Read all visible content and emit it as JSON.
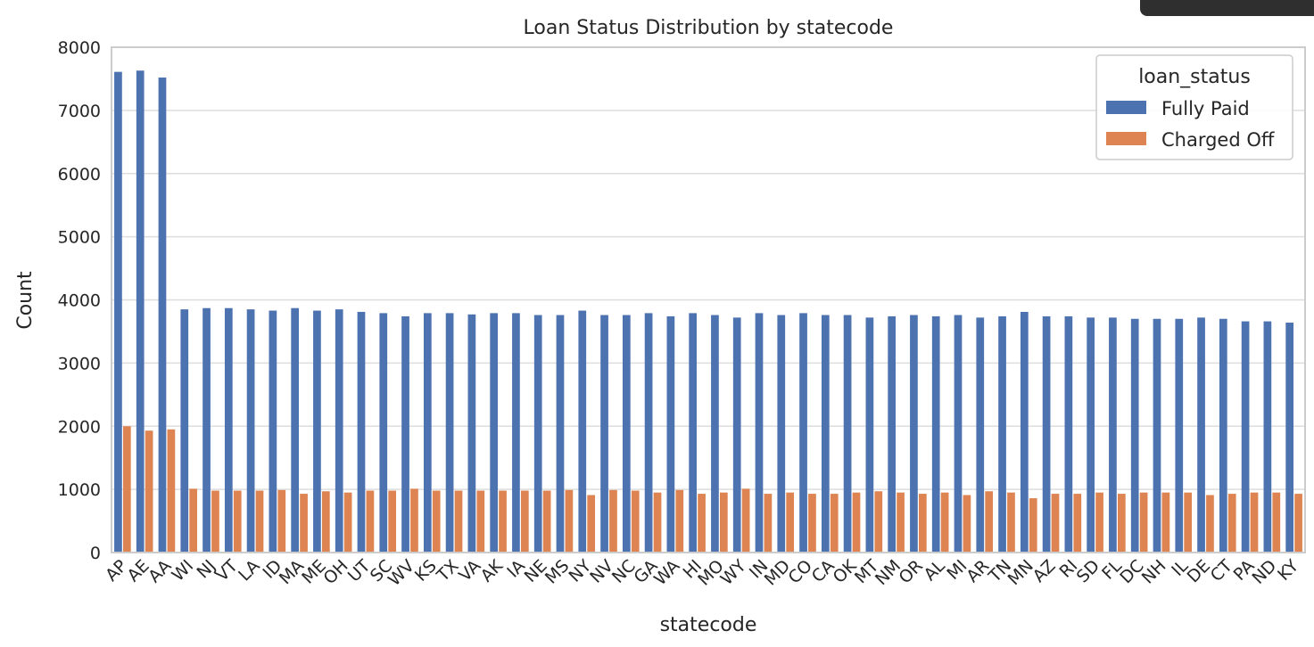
{
  "chart_data": {
    "type": "bar",
    "title": "Loan Status Distribution by statecode",
    "xlabel": "statecode",
    "ylabel": "Count",
    "ylim": [
      0,
      8000
    ],
    "yticks": [
      0,
      1000,
      2000,
      3000,
      4000,
      5000,
      6000,
      7000,
      8000
    ],
    "grid": true,
    "legend": {
      "title": "loan_status",
      "placement": "top-right"
    },
    "categories": [
      "AP",
      "AE",
      "AA",
      "WI",
      "NJ",
      "VT",
      "LA",
      "ID",
      "MA",
      "ME",
      "OH",
      "UT",
      "SC",
      "WV",
      "KS",
      "TX",
      "VA",
      "AK",
      "IA",
      "NE",
      "MS",
      "NY",
      "NV",
      "NC",
      "GA",
      "WA",
      "HI",
      "MO",
      "WY",
      "IN",
      "MD",
      "CO",
      "CA",
      "OK",
      "MT",
      "NM",
      "OR",
      "AL",
      "MI",
      "AR",
      "TN",
      "MN",
      "AZ",
      "RI",
      "SD",
      "FL",
      "DC",
      "NH",
      "IL",
      "DE",
      "CT",
      "PA",
      "ND",
      "KY"
    ],
    "series": [
      {
        "name": "Fully Paid",
        "color": "#4c72b0",
        "values": [
          7610,
          7630,
          7520,
          3850,
          3870,
          3870,
          3850,
          3830,
          3870,
          3830,
          3850,
          3810,
          3790,
          3740,
          3790,
          3790,
          3770,
          3790,
          3790,
          3760,
          3760,
          3830,
          3760,
          3760,
          3790,
          3740,
          3790,
          3760,
          3720,
          3790,
          3760,
          3790,
          3760,
          3760,
          3720,
          3740,
          3760,
          3740,
          3760,
          3720,
          3740,
          3810,
          3740,
          3740,
          3720,
          3720,
          3700,
          3700,
          3700,
          3720,
          3700,
          3660,
          3660,
          3640
        ]
      },
      {
        "name": "Charged Off",
        "color": "#dd8452",
        "values": [
          2000,
          1930,
          1950,
          1010,
          980,
          980,
          980,
          990,
          930,
          970,
          950,
          980,
          980,
          1010,
          980,
          980,
          980,
          980,
          980,
          980,
          990,
          910,
          990,
          980,
          950,
          990,
          930,
          950,
          1010,
          930,
          950,
          930,
          930,
          950,
          970,
          950,
          930,
          950,
          910,
          970,
          950,
          860,
          930,
          930,
          950,
          930,
          950,
          950,
          950,
          910,
          930,
          950,
          950,
          930
        ]
      }
    ]
  }
}
